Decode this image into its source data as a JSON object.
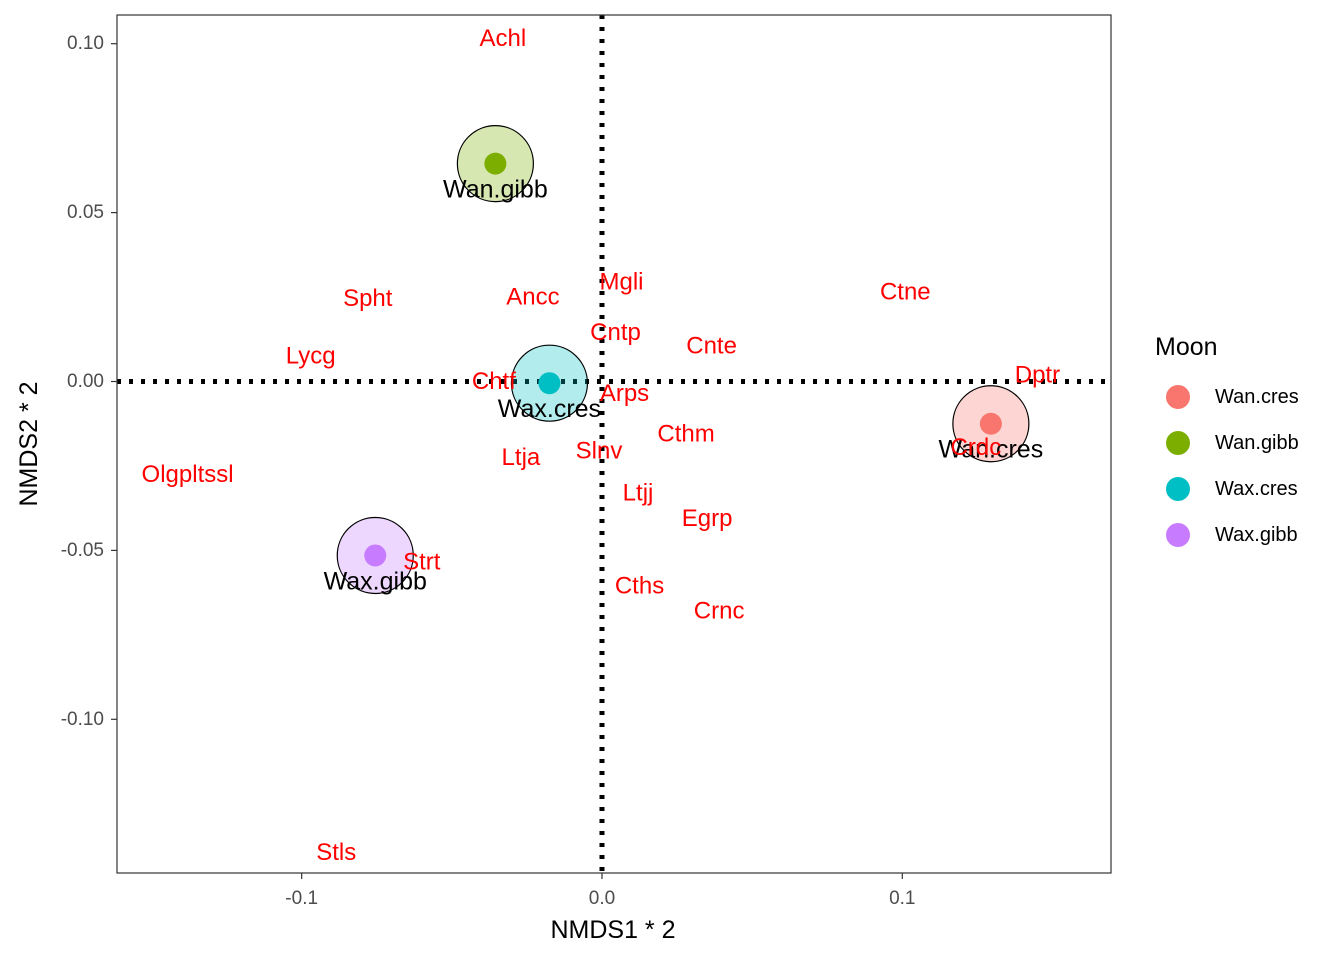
{
  "chart_data": {
    "type": "scatter",
    "xlabel": "NMDS1 * 2",
    "ylabel": "NMDS2 * 2",
    "xlim": [
      -0.1615,
      0.1695
    ],
    "ylim": [
      -0.1455,
      0.1085
    ],
    "x_ticks": [
      {
        "value": -0.1,
        "label": "-0.1"
      },
      {
        "value": 0.0,
        "label": "0.0"
      },
      {
        "value": 0.1,
        "label": "0.1"
      }
    ],
    "y_ticks": [
      {
        "value": 0.1,
        "label": "0.10"
      },
      {
        "value": 0.05,
        "label": "0.05"
      },
      {
        "value": 0.0,
        "label": "0.00"
      },
      {
        "value": -0.05,
        "label": "-0.05"
      },
      {
        "value": -0.1,
        "label": "-0.10"
      }
    ],
    "reference_lines": {
      "x": 0,
      "y": 0,
      "style": "dotted"
    },
    "grid": false,
    "legend": {
      "title": "Moon",
      "position": "right",
      "entries": [
        {
          "label": "Wan.cres",
          "color": "#F8766D"
        },
        {
          "label": "Wan.gibb",
          "color": "#7CAE00"
        },
        {
          "label": "Wax.cres",
          "color": "#00BFC4"
        },
        {
          "label": "Wax.gibb",
          "color": "#C77CFF"
        }
      ]
    },
    "groups": [
      {
        "name": "Wan.cres",
        "x": 0.1295,
        "y": -0.0125,
        "color": "#F8766D",
        "label": "Wan.cres"
      },
      {
        "name": "Wan.gibb",
        "x": -0.0355,
        "y": 0.0645,
        "color": "#7CAE00",
        "label": "Wan.gibb"
      },
      {
        "name": "Wax.cres",
        "x": -0.0175,
        "y": -0.0005,
        "color": "#00BFC4",
        "label": "Wax.cres"
      },
      {
        "name": "Wax.gibb",
        "x": -0.0755,
        "y": -0.0515,
        "color": "#C77CFF",
        "label": "Wax.gibb"
      }
    ],
    "species": [
      {
        "label": "Achl",
        "x": -0.033,
        "y": 0.1015
      },
      {
        "label": "Spht",
        "x": -0.078,
        "y": 0.0245
      },
      {
        "label": "Ancc",
        "x": -0.023,
        "y": 0.025
      },
      {
        "label": "Mgli",
        "x": 0.0065,
        "y": 0.0295
      },
      {
        "label": "Ctne",
        "x": 0.101,
        "y": 0.0265
      },
      {
        "label": "Lycg",
        "x": -0.097,
        "y": 0.0075
      },
      {
        "label": "Cntp",
        "x": 0.0045,
        "y": 0.0145
      },
      {
        "label": "Cnte",
        "x": 0.0365,
        "y": 0.0105
      },
      {
        "label": "Chtf",
        "x": -0.036,
        "y": 0.0
      },
      {
        "label": "Dptr",
        "x": 0.145,
        "y": 0.002
      },
      {
        "label": "Arps",
        "x": 0.0075,
        "y": -0.0035
      },
      {
        "label": "Cthm",
        "x": 0.028,
        "y": -0.0155
      },
      {
        "label": "Crdc",
        "x": 0.1245,
        "y": -0.0195
      },
      {
        "label": "Ltja",
        "x": -0.027,
        "y": -0.0225
      },
      {
        "label": "Slnv",
        "x": -0.001,
        "y": -0.0205
      },
      {
        "label": "Olgpltssl",
        "x": -0.138,
        "y": -0.0275
      },
      {
        "label": "Ltjj",
        "x": 0.012,
        "y": -0.033
      },
      {
        "label": "Egrp",
        "x": 0.035,
        "y": -0.0405
      },
      {
        "label": "Strt",
        "x": -0.06,
        "y": -0.0535
      },
      {
        "label": "Cths",
        "x": 0.0125,
        "y": -0.0605
      },
      {
        "label": "Crnc",
        "x": 0.039,
        "y": -0.068
      },
      {
        "label": "Stls",
        "x": -0.0885,
        "y": -0.1395
      }
    ]
  }
}
